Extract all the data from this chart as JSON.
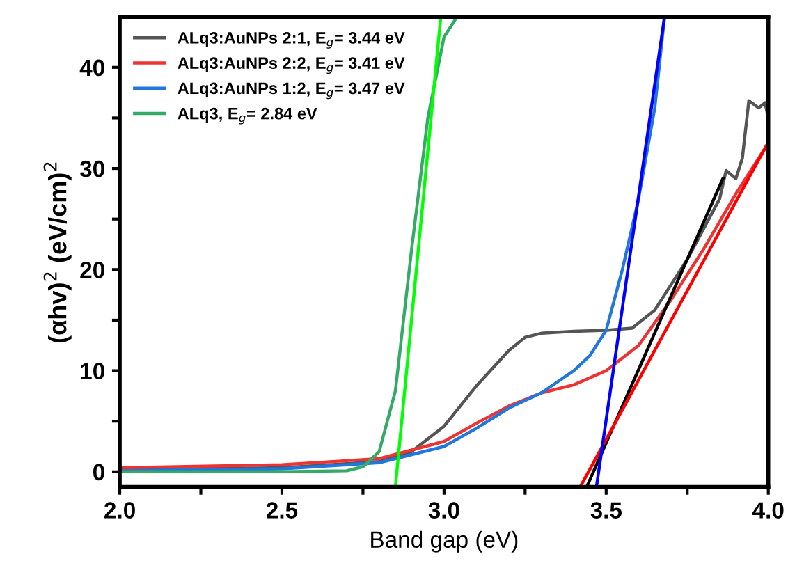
{
  "chart_data": {
    "type": "line",
    "xlabel": "Band gap (eV)",
    "ylabel": "(αhv)$^{2}$ (eV/cm)$^{2}$",
    "xlim": [
      2.0,
      4.0
    ],
    "ylim": [
      -1.5,
      45
    ],
    "xticks": [
      {
        "value": 2,
        "label": "2.0"
      },
      {
        "value": 2.25,
        "label": null
      },
      2.5,
      {
        "value": 2.75,
        "label": null
      },
      {
        "value": 3,
        "label": "3.0"
      },
      {
        "value": 3.25,
        "label": null
      },
      3.5,
      {
        "value": 3.75,
        "label": null
      },
      {
        "value": 4,
        "label": "4.0"
      }
    ],
    "yticks": [
      0,
      {
        "value": 5,
        "label": null
      },
      10,
      {
        "value": 15,
        "label": null
      },
      20,
      {
        "value": 25,
        "label": null
      },
      30,
      {
        "value": 35,
        "label": null
      },
      40
    ],
    "grid": false,
    "legend": "top left",
    "line_style": "solid",
    "marker": "none",
    "series": [
      {
        "name": "ALq3:AuNPs 2:1, E$_{g}$= 3.44 eV",
        "color": "#555555",
        "x": [
          2.0,
          2.5,
          2.8,
          2.9,
          3.0,
          3.1,
          3.2,
          3.25,
          3.3,
          3.4,
          3.5,
          3.58,
          3.65,
          3.7,
          3.75,
          3.8,
          3.85,
          3.87,
          3.9,
          3.92,
          3.94,
          3.97,
          3.99,
          4.0
        ],
        "values": [
          0.2,
          0.4,
          1.0,
          2.0,
          4.5,
          8.5,
          12.0,
          13.3,
          13.7,
          13.9,
          14.0,
          14.2,
          16.0,
          18.5,
          21.0,
          24.0,
          27.0,
          29.8,
          29.0,
          31.0,
          36.7,
          36.0,
          36.5,
          35.0
        ]
      },
      {
        "name": "ALq3:AuNPs 2:2, E$_{g}$= 3.41 eV",
        "color": "#ee3333",
        "x": [
          2.0,
          2.5,
          2.8,
          3.0,
          3.1,
          3.2,
          3.3,
          3.4,
          3.5,
          3.6,
          3.7,
          3.8,
          3.9,
          4.0
        ],
        "values": [
          0.4,
          0.7,
          1.3,
          3.0,
          4.8,
          6.5,
          7.8,
          8.6,
          10.0,
          12.5,
          17.0,
          22.0,
          27.5,
          32.5
        ]
      },
      {
        "name": "ALq3:AuNPs 1:2, E$_{g}$= 3.47 eV",
        "color": "#2277dd",
        "x": [
          2.0,
          2.5,
          2.8,
          3.0,
          3.1,
          3.2,
          3.3,
          3.4,
          3.45,
          3.5,
          3.55,
          3.6,
          3.65,
          3.68
        ],
        "values": [
          0.1,
          0.3,
          0.9,
          2.5,
          4.3,
          6.3,
          7.8,
          10.0,
          11.5,
          14.0,
          20.0,
          27.0,
          36.0,
          45.0
        ]
      },
      {
        "name": "ALq3, E$_{g}$= 2.84 eV",
        "color": "#33aa66",
        "x": [
          2.0,
          2.5,
          2.7,
          2.75,
          2.8,
          2.85,
          2.9,
          2.95,
          3.0,
          3.04
        ],
        "values": [
          0.0,
          0.0,
          0.1,
          0.5,
          2.0,
          8.0,
          22.0,
          35.0,
          43.0,
          45.0
        ]
      },
      {
        "color": "#000000",
        "x": [
          3.44,
          3.86
        ],
        "values": [
          -1.5,
          29.0
        ]
      },
      {
        "color": "#ff0000",
        "x": [
          3.42,
          4.0
        ],
        "values": [
          -1.5,
          32.6
        ]
      },
      {
        "color": "#0000ff",
        "x": [
          3.47,
          3.68
        ],
        "values": [
          -1.5,
          45.0
        ]
      },
      {
        "color": "#00ff00",
        "x": [
          2.85,
          2.99
        ],
        "values": [
          -1.5,
          45.0
        ]
      }
    ]
  }
}
